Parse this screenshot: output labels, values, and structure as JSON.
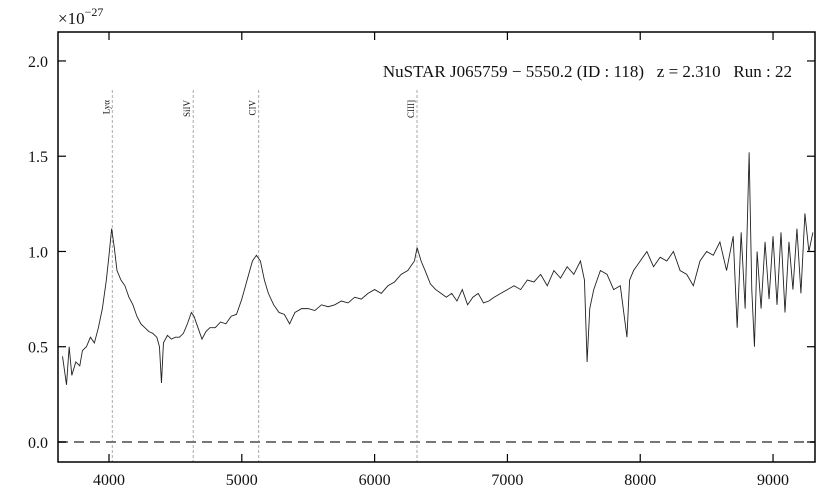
{
  "chart_data": {
    "type": "line",
    "title": "NuSTAR J065759 − 5550.2 (ID : 118)   z = 2.310   Run : 22",
    "y_offset_label": {
      "base": "×10",
      "exponent": "−27"
    },
    "color": "#222222",
    "xlim": [
      3616,
      9316
    ],
    "ylim": [
      -0.105,
      2.152
    ],
    "xticks": [
      4000,
      5000,
      6000,
      7000,
      8000,
      9000
    ],
    "yticks": [
      {
        "value": 0,
        "label": "0.0"
      },
      0.5,
      {
        "value": 1,
        "label": "1.0"
      },
      1.5,
      {
        "value": 2,
        "label": "2.0"
      }
    ],
    "reference_line": {
      "y": 0,
      "style": "dashed",
      "color": "#777777"
    },
    "lines": [
      {
        "label": "Lyα",
        "x": 4025
      },
      {
        "label": "SiIV",
        "x": 4634
      },
      {
        "label": "CIV",
        "x": 5127
      },
      {
        "label": "CIII]",
        "x": 6319
      }
    ],
    "x": [
      3650,
      3680,
      3700,
      3720,
      3750,
      3780,
      3800,
      3830,
      3860,
      3890,
      3920,
      3950,
      3980,
      4000,
      4020,
      4040,
      4060,
      4090,
      4120,
      4150,
      4180,
      4210,
      4240,
      4270,
      4300,
      4330,
      4360,
      4380,
      4395,
      4410,
      4440,
      4470,
      4500,
      4530,
      4560,
      4590,
      4620,
      4640,
      4670,
      4700,
      4730,
      4760,
      4800,
      4840,
      4880,
      4920,
      4960,
      5000,
      5040,
      5080,
      5110,
      5140,
      5170,
      5200,
      5240,
      5280,
      5320,
      5360,
      5400,
      5450,
      5500,
      5550,
      5600,
      5650,
      5700,
      5750,
      5800,
      5850,
      5900,
      5950,
      6000,
      6050,
      6100,
      6150,
      6200,
      6250,
      6300,
      6320,
      6350,
      6380,
      6420,
      6460,
      6500,
      6540,
      6580,
      6620,
      6660,
      6700,
      6740,
      6780,
      6820,
      6860,
      6900,
      6950,
      7000,
      7050,
      7100,
      7150,
      7200,
      7250,
      7300,
      7350,
      7400,
      7450,
      7500,
      7550,
      7580,
      7600,
      7620,
      7650,
      7700,
      7750,
      7800,
      7850,
      7900,
      7920,
      7950,
      8000,
      8050,
      8100,
      8150,
      8200,
      8250,
      8300,
      8350,
      8400,
      8450,
      8500,
      8550,
      8600,
      8650,
      8700,
      8730,
      8760,
      8790,
      8820,
      8840,
      8860,
      8880,
      8910,
      8940,
      8970,
      9000,
      9030,
      9060,
      9090,
      9120,
      9150,
      9180,
      9210,
      9240,
      9270,
      9300
    ],
    "values": [
      0.45,
      0.3,
      0.5,
      0.35,
      0.42,
      0.4,
      0.48,
      0.5,
      0.55,
      0.52,
      0.6,
      0.7,
      0.85,
      0.98,
      1.12,
      1.02,
      0.9,
      0.85,
      0.82,
      0.76,
      0.72,
      0.66,
      0.62,
      0.6,
      0.58,
      0.57,
      0.55,
      0.5,
      0.31,
      0.52,
      0.56,
      0.54,
      0.55,
      0.55,
      0.57,
      0.62,
      0.68,
      0.66,
      0.6,
      0.54,
      0.58,
      0.6,
      0.6,
      0.63,
      0.62,
      0.66,
      0.67,
      0.75,
      0.85,
      0.95,
      0.98,
      0.95,
      0.85,
      0.78,
      0.72,
      0.68,
      0.67,
      0.62,
      0.68,
      0.7,
      0.7,
      0.69,
      0.72,
      0.71,
      0.72,
      0.74,
      0.73,
      0.76,
      0.75,
      0.78,
      0.8,
      0.78,
      0.82,
      0.84,
      0.88,
      0.9,
      0.95,
      1.02,
      0.95,
      0.9,
      0.83,
      0.8,
      0.78,
      0.76,
      0.78,
      0.74,
      0.8,
      0.72,
      0.76,
      0.78,
      0.73,
      0.74,
      0.76,
      0.78,
      0.8,
      0.82,
      0.8,
      0.85,
      0.84,
      0.88,
      0.82,
      0.9,
      0.86,
      0.92,
      0.88,
      0.95,
      0.85,
      0.42,
      0.7,
      0.8,
      0.9,
      0.88,
      0.8,
      0.82,
      0.55,
      0.85,
      0.9,
      0.95,
      1.0,
      0.92,
      0.97,
      0.95,
      1.0,
      0.9,
      0.88,
      0.82,
      0.95,
      1.0,
      0.98,
      1.05,
      0.9,
      1.08,
      0.6,
      1.1,
      0.7,
      1.52,
      0.8,
      0.5,
      1.0,
      0.7,
      1.05,
      0.75,
      1.08,
      0.72,
      1.1,
      0.68,
      1.05,
      0.8,
      1.12,
      0.78,
      1.2,
      1.0,
      1.1
    ]
  }
}
